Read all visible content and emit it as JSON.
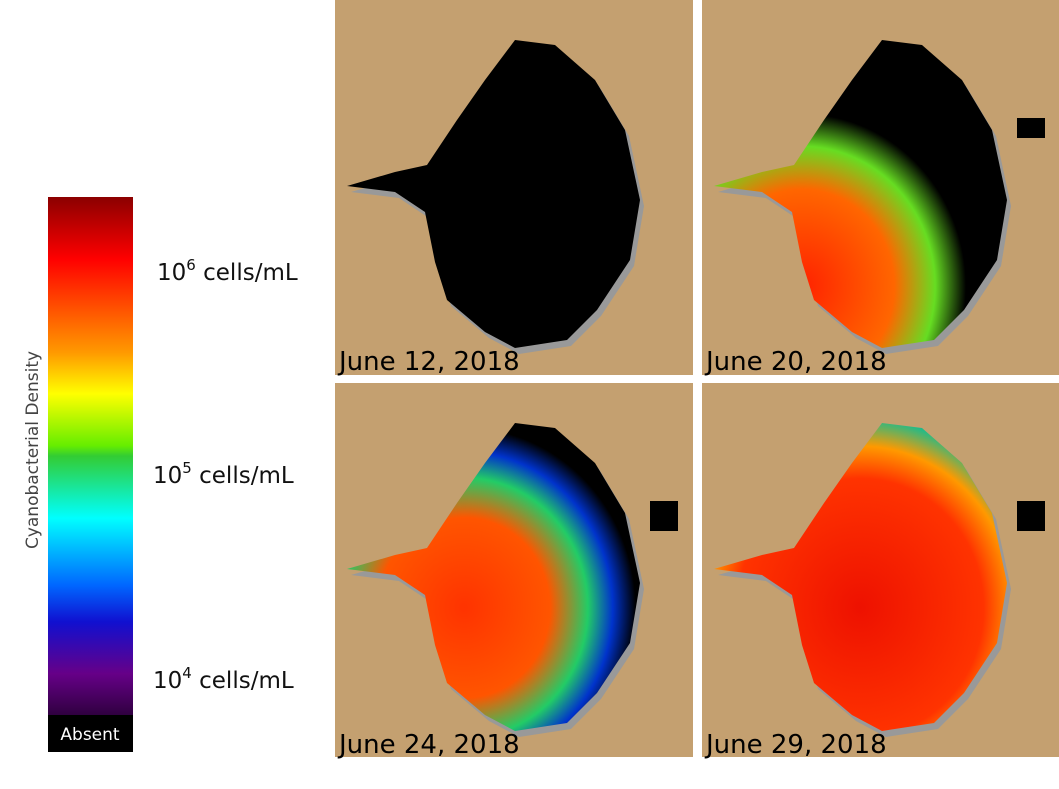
{
  "colorbar": {
    "title": "Cyanobacterial Density",
    "labels": [
      {
        "base": "10",
        "exponent": "6",
        "unit": "cells/mL"
      },
      {
        "base": "10",
        "exponent": "5",
        "unit": "cells/mL"
      },
      {
        "base": "10",
        "exponent": "4",
        "unit": "cells/mL"
      }
    ],
    "absent": "Absent"
  },
  "panels": [
    {
      "date": "June 12, 2018"
    },
    {
      "date": "June 20, 2018"
    },
    {
      "date": "June 24, 2018"
    },
    {
      "date": "June 29, 2018"
    }
  ]
}
